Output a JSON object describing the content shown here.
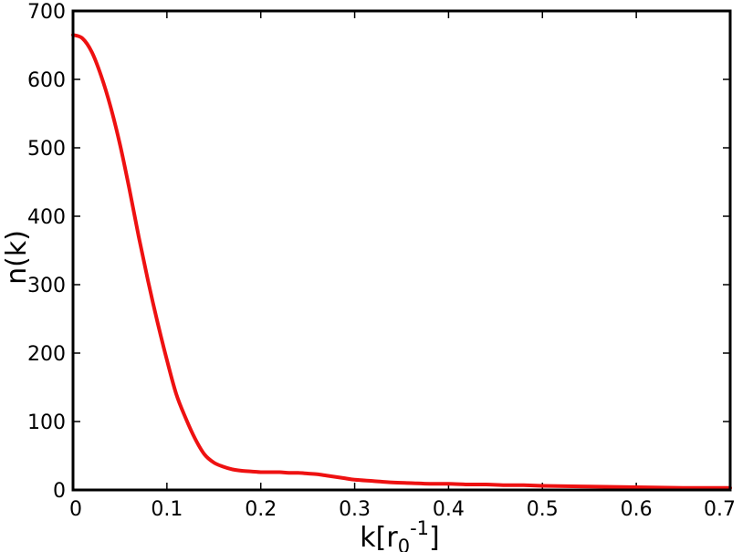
{
  "chart_data": {
    "type": "line",
    "title": "",
    "xlabel": {
      "base": "k[r",
      "subscript": "0",
      "superscript": "-1",
      "close": "]"
    },
    "ylabel": "n(k)",
    "xlim": [
      0,
      0.7
    ],
    "ylim": [
      0,
      700
    ],
    "x_ticks": [
      0,
      0.1,
      0.2,
      0.3,
      0.4,
      0.5,
      0.6,
      0.7
    ],
    "x_tick_labels": [
      "0",
      "0.1",
      "0.2",
      "0.3",
      "0.4",
      "0.5",
      "0.6",
      "0.7"
    ],
    "y_ticks": [
      0,
      100,
      200,
      300,
      400,
      500,
      600,
      700
    ],
    "y_tick_labels": [
      "0",
      "100",
      "200",
      "300",
      "400",
      "500",
      "600",
      "700"
    ],
    "grid": false,
    "legend": "none",
    "series": [
      {
        "color": "#ee1111",
        "x": [
          0.0,
          0.01,
          0.02,
          0.03,
          0.04,
          0.05,
          0.06,
          0.07,
          0.08,
          0.09,
          0.1,
          0.11,
          0.12,
          0.13,
          0.14,
          0.15,
          0.16,
          0.17,
          0.18,
          0.19,
          0.2,
          0.21,
          0.22,
          0.23,
          0.24,
          0.25,
          0.26,
          0.27,
          0.28,
          0.29,
          0.3,
          0.32,
          0.34,
          0.36,
          0.38,
          0.4,
          0.42,
          0.44,
          0.46,
          0.48,
          0.5,
          0.55,
          0.6,
          0.65,
          0.7
        ],
        "y": [
          665,
          660,
          640,
          605,
          560,
          505,
          440,
          370,
          305,
          245,
          190,
          140,
          105,
          75,
          52,
          40,
          34,
          30,
          28,
          27,
          26,
          26,
          26,
          25,
          25,
          24,
          23,
          21,
          19,
          17,
          15,
          13,
          11,
          10,
          9,
          9,
          8,
          8,
          7,
          7,
          6,
          5,
          4,
          3,
          3
        ]
      }
    ]
  }
}
